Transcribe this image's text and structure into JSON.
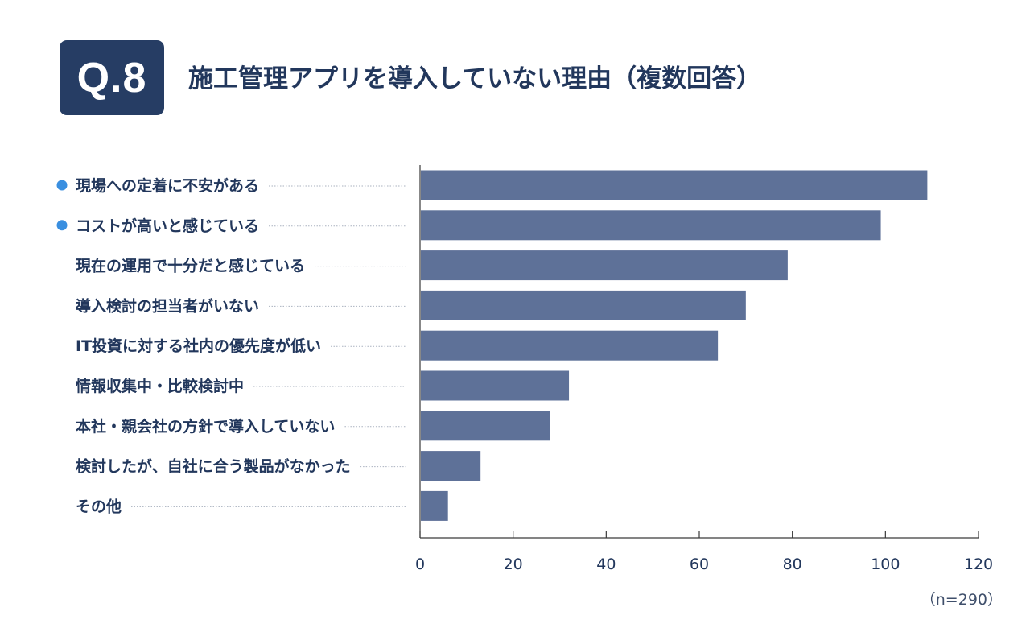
{
  "header": {
    "badge": "Q.8",
    "title": "施工管理アプリを導入していない理由（複数回答）"
  },
  "note": "（n=290）",
  "colors": {
    "bar": "#5e7198",
    "badge_bg": "#263d64",
    "text": "#22375c",
    "highlight_dot": "#3a8fe0"
  },
  "chart_data": {
    "type": "bar",
    "orientation": "horizontal",
    "categories": [
      "現場への定着に不安がある",
      "コストが高いと感じている",
      "現在の運用で十分だと感じている",
      "導入検討の担当者がいない",
      "IT投資に対する社内の優先度が低い",
      "情報収集中・比較検討中",
      "本社・親会社の方針で導入していない",
      "検討したが、自社に合う製品がなかった",
      "その他"
    ],
    "highlighted": [
      true,
      true,
      false,
      false,
      false,
      false,
      false,
      false,
      false
    ],
    "values": [
      109,
      99,
      79,
      70,
      64,
      32,
      28,
      13,
      6
    ],
    "xlim": [
      0,
      120
    ],
    "xticks": [
      "0",
      "20",
      "40",
      "60",
      "80",
      "100",
      "120"
    ],
    "grid": false,
    "legend": "none"
  }
}
